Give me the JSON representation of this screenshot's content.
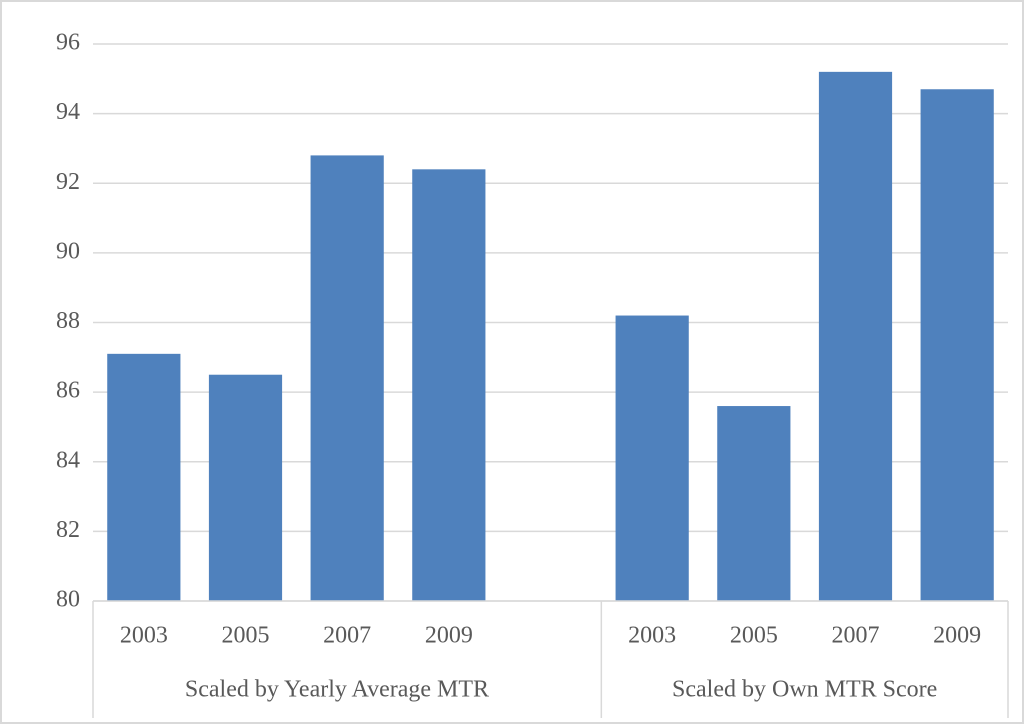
{
  "chart_data": {
    "type": "bar",
    "color": "#4f81bd",
    "grid": true,
    "ylim": [
      80,
      96
    ],
    "yticks": [
      80,
      82,
      84,
      86,
      88,
      90,
      92,
      94,
      96
    ],
    "groups": [
      {
        "name": "Scaled by Yearly Average MTR",
        "categories": [
          "2003",
          "2005",
          "2007",
          "2009",
          null
        ],
        "values": [
          87.1,
          86.5,
          92.8,
          92.4,
          null
        ]
      },
      {
        "name": "Scaled by Own MTR Score",
        "categories": [
          "2003",
          "2005",
          "2007",
          "2009"
        ],
        "values": [
          88.2,
          85.6,
          95.2,
          94.7
        ]
      }
    ]
  }
}
